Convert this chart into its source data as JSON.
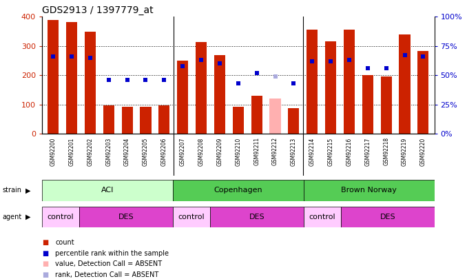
{
  "title": "GDS2913 / 1397779_at",
  "samples": [
    "GSM92200",
    "GSM92201",
    "GSM92202",
    "GSM92203",
    "GSM92204",
    "GSM92205",
    "GSM92206",
    "GSM92207",
    "GSM92208",
    "GSM92209",
    "GSM92210",
    "GSM92211",
    "GSM92212",
    "GSM92213",
    "GSM92214",
    "GSM92215",
    "GSM92216",
    "GSM92217",
    "GSM92218",
    "GSM92219",
    "GSM92220"
  ],
  "counts": [
    390,
    382,
    350,
    97,
    93,
    93,
    97,
    250,
    313,
    270,
    93,
    130,
    120,
    87,
    357,
    315,
    357,
    200,
    195,
    340,
    283
  ],
  "percentile_ranks_pct": [
    66,
    66,
    65,
    46,
    46,
    46,
    46,
    58,
    63,
    60,
    43,
    52,
    49,
    43,
    62,
    62,
    63,
    56,
    56,
    67,
    66
  ],
  "absent_bar_mask": [
    false,
    false,
    false,
    false,
    false,
    false,
    false,
    false,
    false,
    false,
    false,
    false,
    true,
    false,
    false,
    false,
    false,
    false,
    false,
    false,
    false
  ],
  "absent_rank_mask": [
    false,
    false,
    false,
    false,
    false,
    false,
    false,
    false,
    false,
    false,
    false,
    false,
    true,
    false,
    false,
    false,
    false,
    false,
    false,
    false,
    false
  ],
  "ylim_left": [
    0,
    400
  ],
  "ylim_right": [
    0,
    100
  ],
  "yticks_left": [
    0,
    100,
    200,
    300,
    400
  ],
  "yticks_right": [
    0,
    25,
    50,
    75,
    100
  ],
  "bar_color": "#cc2200",
  "absent_bar_color": "#ffb0b0",
  "rank_color": "#0000cc",
  "absent_rank_color": "#aaaadd",
  "tick_label_color_left": "#cc2200",
  "tick_label_color_right": "#0000cc",
  "strain_groups": [
    {
      "label": "ACI",
      "start": 0,
      "end": 7,
      "color": "#ccffcc"
    },
    {
      "label": "Copenhagen",
      "start": 7,
      "end": 14,
      "color": "#55cc55"
    },
    {
      "label": "Brown Norway",
      "start": 14,
      "end": 21,
      "color": "#55cc55"
    }
  ],
  "agent_groups": [
    {
      "label": "control",
      "start": 0,
      "end": 2,
      "color": "#ffccff"
    },
    {
      "label": "DES",
      "start": 2,
      "end": 7,
      "color": "#dd44cc"
    },
    {
      "label": "control",
      "start": 7,
      "end": 9,
      "color": "#ffccff"
    },
    {
      "label": "DES",
      "start": 9,
      "end": 14,
      "color": "#dd44cc"
    },
    {
      "label": "control",
      "start": 14,
      "end": 16,
      "color": "#ffccff"
    },
    {
      "label": "DES",
      "start": 16,
      "end": 21,
      "color": "#dd44cc"
    }
  ],
  "group_separators": [
    6.5,
    13.5
  ],
  "xtick_bg_color": "#dddddd",
  "legend_items": [
    {
      "color": "#cc2200",
      "label": "count"
    },
    {
      "color": "#0000cc",
      "label": "percentile rank within the sample"
    },
    {
      "color": "#ffb0b0",
      "label": "value, Detection Call = ABSENT"
    },
    {
      "color": "#aaaadd",
      "label": "rank, Detection Call = ABSENT"
    }
  ]
}
